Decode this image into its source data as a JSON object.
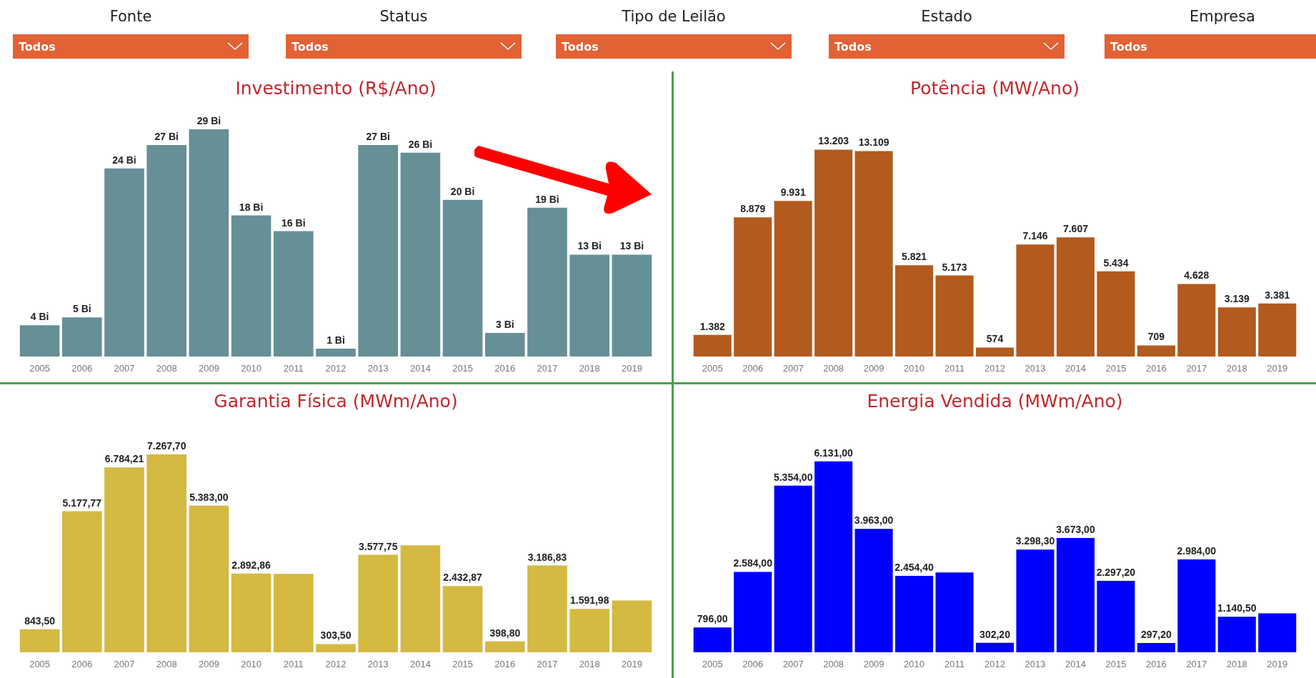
{
  "chart_data": [
    {
      "type": "other",
      "annotations": [
        "Fonte",
        "Todos",
        "Status",
        "Todos",
        "Tipo de Leilão",
        "Todos",
        "Estado",
        "Todos",
        "Empresa",
        "Todos"
      ]
    },
    {
      "type": "bar",
      "title": "Investimento (R$/Ano)",
      "categories": [
        "2005",
        "2006",
        "2007",
        "2008",
        "2009",
        "2010",
        "2011",
        "2012",
        "2013",
        "2014",
        "2015",
        "2016",
        "2017",
        "2018",
        "2019"
      ],
      "color": "#668f96",
      "values": [
        4,
        5,
        24,
        27,
        29,
        18,
        16,
        1,
        27,
        26,
        20,
        3,
        19,
        13,
        13
      ],
      "value_labels": [
        "4 Bi",
        "5 Bi",
        "24 Bi",
        "27 Bi",
        "29 Bi",
        "18 Bi",
        "16 Bi",
        "1 Bi",
        "27 Bi",
        "26 Bi",
        "20 Bi",
        "3 Bi",
        "19 Bi",
        "13 Bi",
        "13 Bi"
      ]
    },
    {
      "type": "bar",
      "title": "Potência (MW/Ano)",
      "categories": [
        "2005",
        "2006",
        "2007",
        "2008",
        "2009",
        "2010",
        "2011",
        "2012",
        "2013",
        "2014",
        "2015",
        "2016",
        "2017",
        "2018",
        "2019"
      ],
      "color": "#b35a1e",
      "values": [
        1382,
        8879,
        9931,
        13203,
        13109,
        5821,
        5173,
        574,
        7146,
        7607,
        5434,
        709,
        4628,
        3139,
        3381
      ],
      "value_labels": [
        "1.382",
        "8.879",
        "9.931",
        "13.203",
        "13.109",
        "5.821",
        "5.173",
        "574",
        "7.146",
        "7.607",
        "5.434",
        "709",
        "4.628",
        "3.139",
        "3.381"
      ]
    },
    {
      "type": "bar",
      "title": "Garantia Física (MWm/Ano)",
      "categories": [
        "2005",
        "2006",
        "2007",
        "2008",
        "2009",
        "2010",
        "2011",
        "2012",
        "2013",
        "2014",
        "2015",
        "2016",
        "2017",
        "2018",
        "2019"
      ],
      "color": "#d4b942",
      "values": [
        843.5,
        5177.77,
        6784.21,
        7267.7,
        5383,
        2892.86,
        2880,
        303.5,
        3577.75,
        3930,
        2432.87,
        398.8,
        3186.83,
        1591.98,
        1900
      ],
      "value_labels": [
        "843,50",
        "5.177,77",
        "6.784,21",
        "7.267,70",
        "5.383,00",
        "2.892,86",
        null,
        "303,50",
        "3.577,75",
        null,
        "2.432,87",
        "398,80",
        "3.186,83",
        "1.591,98",
        null
      ]
    },
    {
      "type": "bar",
      "title": "Energia Vendida (MWm/Ano)",
      "categories": [
        "2005",
        "2006",
        "2007",
        "2008",
        "2009",
        "2010",
        "2011",
        "2012",
        "2013",
        "2014",
        "2015",
        "2016",
        "2017",
        "2018",
        "2019"
      ],
      "color": "#0000ff",
      "values": [
        796,
        2584,
        5354,
        6131,
        3963,
        2454.4,
        2565,
        302.2,
        3298.3,
        3673,
        2297.2,
        297.2,
        2984,
        1140.5,
        1250
      ],
      "value_labels": [
        "796,00",
        "2.584,00",
        "5.354,00",
        "6.131,00",
        "3.963,00",
        "2.454,40",
        null,
        "302,20",
        "3.298,30",
        "3.673,00",
        "2.297,20",
        "297,20",
        "2.984,00",
        "1.140,50",
        null
      ]
    }
  ]
}
